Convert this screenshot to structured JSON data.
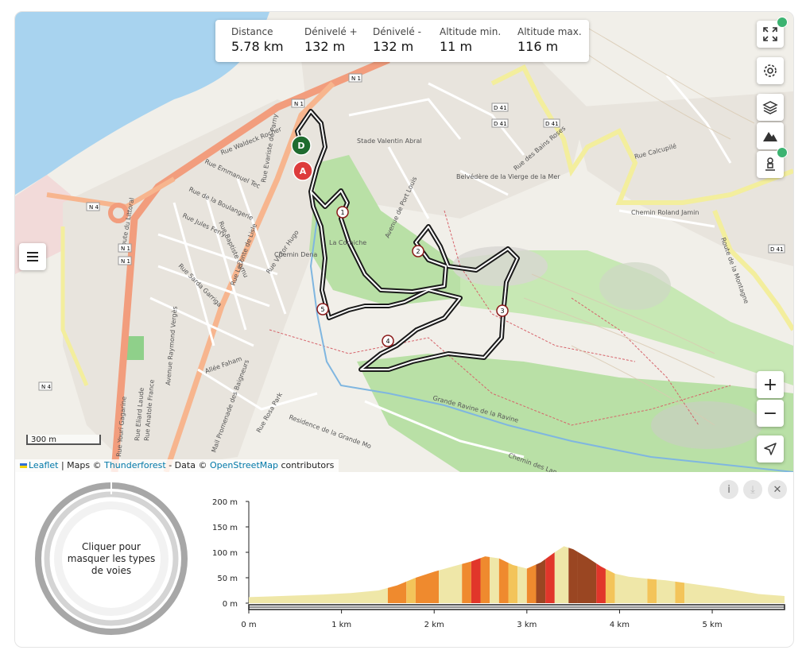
{
  "stats": [
    {
      "label": "Distance",
      "value": "5.78 km"
    },
    {
      "label": "Dénivelé +",
      "value": "132 m"
    },
    {
      "label": "Dénivelé -",
      "value": "132 m"
    },
    {
      "label": "Altitude min.",
      "value": "11 m"
    },
    {
      "label": "Altitude max.",
      "value": "116 m"
    }
  ],
  "map": {
    "labels": [
      "Stade Valentin Abral",
      "Belvédère de la Vierge de la Mer",
      "Rue Waldeck Rocher",
      "Route du Littoral",
      "Chemin Roland Jamin",
      "Rue Calcupilé",
      "Avenue de Port Louis",
      "Rue des Bains Roses",
      "Route de la Montagne",
      "Rue Victor Hugo",
      "Chemin Dena",
      "Allée Faham",
      "Rue Rosa Park",
      "Residence de la Grande Mo",
      "Chemin des Lan",
      "Grande Ravine de la Ravine",
      "La Corniche",
      "Rue Emmanuel Tec",
      "Rue de la Boulangerie",
      "Rue Jules Ferry",
      "Rue Baptiste Cornu",
      "Rue Leconte de Lisle",
      "Rue Sarda Garriga",
      "Avenue Raymond Vergès",
      "Rue Anatole France",
      "Rue Youri Gagarine",
      "Rue Eliard Laude",
      "Mail Promenade des Baigneurs",
      "Rue Evariste de Parny"
    ],
    "road_refs": [
      "N 1",
      "N 4",
      "D 41"
    ],
    "markers": {
      "start": "D",
      "end": "A",
      "waypoints": [
        "1",
        "2",
        "3",
        "4",
        "5"
      ]
    },
    "scale": "300 m",
    "attribution": {
      "leaflet": "Leaflet",
      "maps_prefix": "| Maps ©",
      "thunderforest": "Thunderforest",
      "data_prefix": "- Data ©",
      "osm": "OpenStreetMap",
      "suffix": "contributors"
    },
    "controls": [
      "fullscreen-icon",
      "gear-icon",
      "layers-icon",
      "mountain-icon",
      "person-pin-icon",
      "plus-icon",
      "minus-icon",
      "locate-icon",
      "menu-icon"
    ],
    "zoom_in": "+",
    "zoom_out": "−"
  },
  "road_types": {
    "text": "Cliquer pour masquer les types de voies"
  },
  "buttons": {
    "info": "i",
    "download": "⤓",
    "close": "✕"
  },
  "chart_data": {
    "type": "area",
    "title": "",
    "xlabel": "",
    "ylabel": "",
    "x_ticks": [
      "0 m",
      "1 km",
      "2 km",
      "3 km",
      "4 km",
      "5 km"
    ],
    "y_ticks": [
      "0 m",
      "50 m",
      "100 m",
      "150 m",
      "200 m"
    ],
    "xlim": [
      0,
      5.78
    ],
    "ylim": [
      0,
      200
    ],
    "series": [
      {
        "x": [
          0,
          0.2,
          0.5,
          0.8,
          1.1,
          1.4,
          1.6,
          1.8,
          2.0,
          2.2,
          2.4,
          2.55,
          2.7,
          2.85,
          3.0,
          3.15,
          3.3,
          3.4,
          3.5,
          3.65,
          3.8,
          3.95,
          4.1,
          4.3,
          4.5,
          4.7,
          4.9,
          5.1,
          5.3,
          5.5,
          5.78
        ],
        "y": [
          12,
          13,
          15,
          17,
          20,
          25,
          35,
          50,
          62,
          72,
          82,
          92,
          88,
          75,
          68,
          80,
          100,
          112,
          106,
          90,
          72,
          58,
          52,
          48,
          45,
          40,
          35,
          30,
          24,
          18,
          14
        ]
      }
    ],
    "colors": {
      "flat": "#efe7a8",
      "light": "#f3c45a",
      "medium": "#ef8a2e",
      "steep": "#e1362a",
      "very_steep": "#9a4622"
    }
  }
}
